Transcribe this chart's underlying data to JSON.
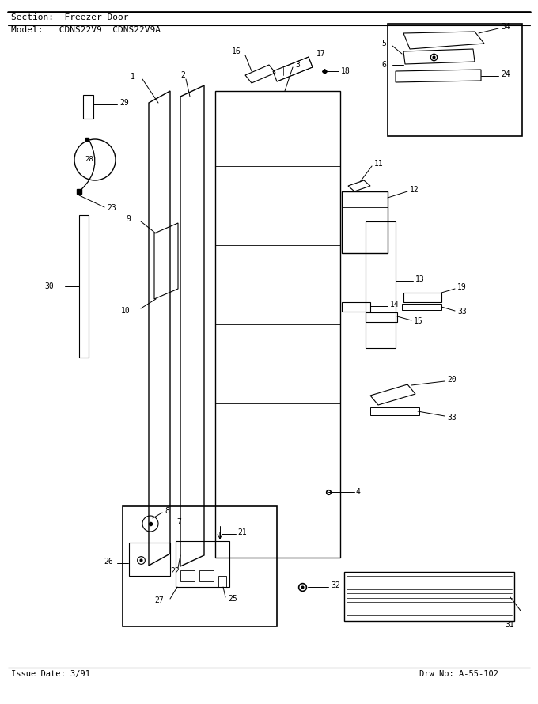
{
  "title_section": "Section:  Freezer Door",
  "title_model": "Model:   CDNS22V9  CDNS22V9A",
  "issue_date": "Issue Date: 3/91",
  "drw_no": "Drw No: A-55-102",
  "bg_color": "#ffffff",
  "text_color": "#000000",
  "fig_width": 6.8,
  "fig_height": 8.9,
  "dpi": 100
}
